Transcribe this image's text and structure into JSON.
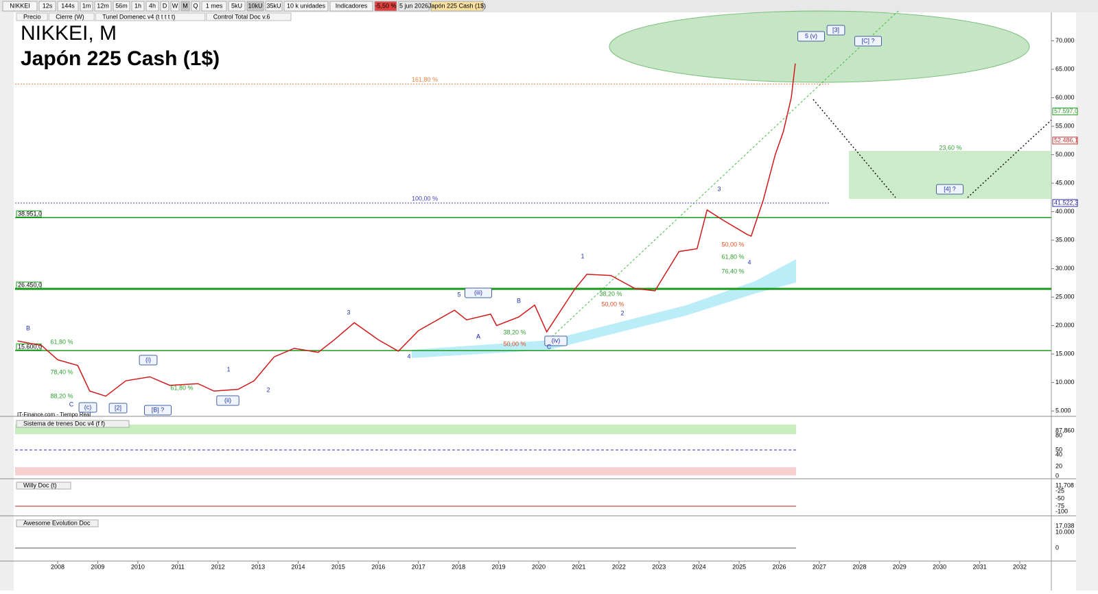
{
  "toolbar": {
    "symbol": "NIKKEI",
    "timeframes": [
      "12s",
      "144s",
      "1m",
      "12m",
      "56m",
      "1h",
      "4h",
      "D",
      "W",
      "M",
      "Q"
    ],
    "period": "1 mes",
    "units": [
      "5kU",
      "10kU",
      "35kU"
    ],
    "unit_select": "10 k unidades",
    "indicators": "Indicadores",
    "change": "-5,50 %",
    "date": "5 jun 2026",
    "instrument": "Japón 225 Cash (1$)"
  },
  "legend": [
    "Precio",
    "Cierre (W)",
    "Tunel Domenec v4 (t t t t t)",
    "Control Total Doc v.6"
  ],
  "title": {
    "line1": "NIKKEI, M",
    "line2": "Japón 225 Cash (1$)"
  },
  "source": "IT-Finance.com - Tiempo Real",
  "chart": {
    "xlim": [
      2006.94,
      2032.79
    ],
    "ylim": [
      4300,
      75000
    ],
    "xticks": [
      2008,
      2009,
      2010,
      2011,
      2012,
      2013,
      2014,
      2015,
      2016,
      2017,
      2018,
      2019,
      2020,
      2021,
      2022,
      2023,
      2024,
      2025,
      2026,
      2027,
      2028,
      2029,
      2030,
      2031,
      2032
    ],
    "yticks": [
      {
        "value": 70000,
        "label": "70.000"
      },
      {
        "value": 65000,
        "label": "65.000"
      },
      {
        "value": 60000,
        "label": "60.000"
      },
      {
        "value": 55000,
        "label": "55.000"
      },
      {
        "value": 50000,
        "label": "50.000"
      },
      {
        "value": 45000,
        "label": "45.000"
      },
      {
        "value": 40000,
        "label": "40.000"
      },
      {
        "value": 35000,
        "label": "35.000"
      },
      {
        "value": 30000,
        "label": "30.000"
      },
      {
        "value": 25000,
        "label": "25.000"
      },
      {
        "value": 20000,
        "label": "20.000"
      },
      {
        "value": 15000,
        "label": "15.000"
      },
      {
        "value": 10000,
        "label": "10.000"
      },
      {
        "value": 5000,
        "label": "5.000"
      }
    ],
    "price": {
      "x": [
        2007.0,
        2007.6,
        2008.0,
        2008.5,
        2008.8,
        2009.2,
        2009.7,
        2010.3,
        2010.8,
        2011.5,
        2011.9,
        2012.5,
        2012.9,
        2013.4,
        2013.9,
        2014.5,
        2014.9,
        2015.4,
        2016.0,
        2016.5,
        2017.0,
        2017.9,
        2018.2,
        2018.8,
        2018.95,
        2019.5,
        2019.9,
        2020.2,
        2020.9,
        2021.2,
        2021.8,
        2022.4,
        2022.9,
        2023.5,
        2023.95,
        2024.2,
        2024.6,
        2025.2,
        2025.3,
        2025.6,
        2025.9,
        2026.1,
        2026.3,
        2026.4
      ],
      "values": [
        17300,
        16500,
        14000,
        13000,
        8500,
        7600,
        10300,
        11000,
        9500,
        9800,
        8500,
        8800,
        10300,
        14500,
        16000,
        15300,
        17500,
        20500,
        17500,
        15500,
        19100,
        22700,
        21000,
        22000,
        20000,
        21500,
        23600,
        18900,
        26400,
        29000,
        28800,
        26500,
        26100,
        33000,
        33500,
        40300,
        38500,
        36000,
        35700,
        42000,
        50000,
        54000,
        60000,
        66000
      ],
      "color": "#d01818"
    },
    "levels": [
      {
        "label": "38.951,0",
        "value": 38951,
        "color": "#1a9a1a"
      },
      {
        "label": "26.450,0",
        "value": 26450,
        "color": "#1a9a1a"
      },
      {
        "label": "15.600,0",
        "value": 15600,
        "color": "#1a9a1a"
      }
    ],
    "price_tags": [
      {
        "label": "57.597,0",
        "value": 57597,
        "color": "#2aa02a"
      },
      {
        "label": "52.486,1",
        "value": 52486,
        "color": "#c03030"
      },
      {
        "label": "41.522,3",
        "value": 41522,
        "color": "#2a2aa0"
      }
    ],
    "fibs": [
      {
        "label": "161,80 %",
        "value": 62400,
        "color": "#f08040"
      },
      {
        "label": "100,00 %",
        "value": 41522,
        "color": "#4040c0"
      }
    ],
    "annotations": [
      "5 (v)",
      "[3]",
      "[C] ?",
      "[4] ?",
      "23,60 %",
      "3",
      "1",
      "2",
      "4",
      "(i)",
      "(ii)",
      "(iii)",
      "(iv)",
      "[2]",
      "[B] ?",
      "(c)",
      "C",
      "B",
      "A",
      "5",
      "3",
      "1",
      "2",
      "4",
      "B",
      "A",
      "C",
      "61,80 %",
      "78,40 %",
      "88,20 %",
      "38,20 %",
      "50,00 %",
      "50,00 %",
      "61,80 %",
      "76,40 %",
      "38,20 %",
      "50,00 %",
      "61,80 %"
    ]
  },
  "panels": [
    {
      "name": "Sistema de trenes Doc v4 (f f)",
      "ticks": [
        "87,860",
        "80",
        "50",
        "40",
        "20",
        "0"
      ]
    },
    {
      "name": "Willy Doc (t)",
      "ticks": [
        "11,708",
        "-25",
        "-50",
        "-75",
        "-100"
      ]
    },
    {
      "name": "Awesome Evolution Doc",
      "ticks": [
        "17,038",
        "10.000",
        "0"
      ]
    }
  ]
}
